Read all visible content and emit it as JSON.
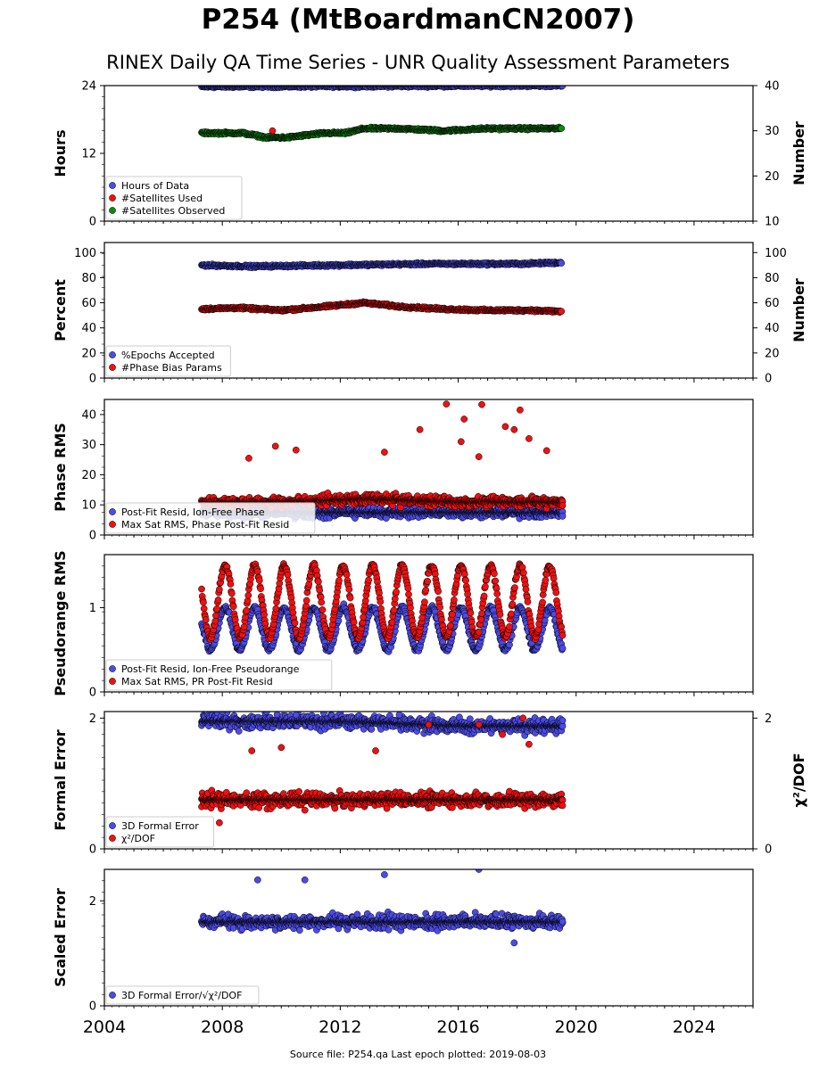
{
  "title": "P254 (MtBoardmanCN2007)",
  "subtitle": "RINEX Daily QA Time Series - UNR Quality Assessment Parameters",
  "footer": "Source file: P254.qa Last epoch plotted: 2019-08-03",
  "colors": {
    "blue": "#4b4be8",
    "red": "#ee1111",
    "green": "#118811"
  },
  "x_axis": {
    "min": 2004,
    "max": 2026,
    "ticks": [
      "2004",
      "2008",
      "2012",
      "2016",
      "2020",
      "2024"
    ]
  },
  "chart_data": [
    {
      "type": "scatter",
      "ylabel": "Hours",
      "y2label": "Number",
      "ylim": [
        0,
        24
      ],
      "y2lim": [
        10,
        40
      ],
      "yticks": [
        "0",
        "12",
        "24"
      ],
      "y2ticks": [
        "10",
        "20",
        "30",
        "40"
      ],
      "legend": "bottom-left",
      "series": [
        {
          "name": "Hours of Data",
          "axis": "left",
          "color": "blue",
          "pattern": "band",
          "x": [
            2007.3,
            2019.55
          ],
          "y": [
            23.8,
            24.0
          ]
        },
        {
          "name": "#Satellites Used",
          "axis": "right",
          "color": "red",
          "pattern": "points",
          "x": [
            2009.7,
            2011.8,
            2012.9,
            2015.0
          ],
          "y": [
            30.0,
            29.5,
            30.5,
            30.0
          ]
        },
        {
          "name": "#Satellites Observed",
          "axis": "right",
          "color": "green",
          "pattern": "band",
          "x": [
            2007.3,
            2008.0,
            2008.7,
            2009.5,
            2010.2,
            2010.8,
            2011.5,
            2012.2,
            2012.8,
            2014.0,
            2015.5,
            2017.0,
            2018.5,
            2019.5
          ],
          "y": [
            29.5,
            29.5,
            29.5,
            28.5,
            28.5,
            29.0,
            29.5,
            29.5,
            30.5,
            30.5,
            30.0,
            30.5,
            30.5,
            30.5
          ]
        }
      ]
    },
    {
      "type": "scatter",
      "ylabel": "Percent",
      "y2label": "Number",
      "ylim": [
        0,
        108
      ],
      "y2lim": [
        0,
        108
      ],
      "yticks": [
        "0",
        "20",
        "40",
        "60",
        "80",
        "100"
      ],
      "y2ticks": [
        "0",
        "20",
        "40",
        "60",
        "80",
        "100"
      ],
      "legend": "bottom-left",
      "series": [
        {
          "name": "%Epochs Accepted",
          "axis": "left",
          "color": "blue",
          "pattern": "band",
          "x": [
            2007.3,
            2009.0,
            2012.0,
            2015.0,
            2018.0,
            2019.5
          ],
          "y": [
            90,
            89,
            90,
            91,
            91,
            92
          ]
        },
        {
          "name": "#Phase Bias Params",
          "axis": "right",
          "color": "red",
          "pattern": "band",
          "x": [
            2007.3,
            2008.5,
            2010.0,
            2011.5,
            2012.8,
            2014.0,
            2015.5,
            2017.0,
            2018.5,
            2019.5
          ],
          "y": [
            55,
            56,
            54,
            57,
            60,
            57,
            55,
            54,
            54,
            53
          ]
        }
      ]
    },
    {
      "type": "scatter",
      "ylabel": "Phase RMS",
      "ylim": [
        0,
        45
      ],
      "yticks": [
        "0",
        "10",
        "20",
        "30",
        "40"
      ],
      "legend": "bottom-left",
      "series": [
        {
          "name": "Post-Fit Resid, Ion-Free Phase",
          "axis": "left",
          "color": "blue",
          "pattern": "band",
          "x": [
            2007.3,
            2019.55
          ],
          "y": [
            7.5,
            7.5
          ]
        },
        {
          "name": "Max Sat RMS, Phase Post-Fit Resid",
          "axis": "left",
          "color": "red",
          "pattern": "band",
          "x": [
            2007.3,
            2010.0,
            2013.0,
            2016.0,
            2019.55
          ],
          "y": [
            11,
            11,
            12,
            11,
            11
          ],
          "outliers": [
            [
              2008.9,
              25.5
            ],
            [
              2009.8,
              29.5
            ],
            [
              2010.5,
              28.2
            ],
            [
              2013.5,
              27.5
            ],
            [
              2014.7,
              35.0
            ],
            [
              2015.6,
              43.5
            ],
            [
              2016.1,
              31.0
            ],
            [
              2016.2,
              38.5
            ],
            [
              2016.7,
              26.0
            ],
            [
              2016.8,
              43.3
            ],
            [
              2017.6,
              36.0
            ],
            [
              2017.9,
              35.0
            ],
            [
              2018.1,
              41.5
            ],
            [
              2018.4,
              32.0
            ],
            [
              2019.0,
              28.0
            ]
          ]
        }
      ]
    },
    {
      "type": "scatter",
      "ylabel": "Pseudorange RMS",
      "ylim": [
        0,
        1.63
      ],
      "yticks": [
        "0",
        "1"
      ],
      "legend": "bottom-left",
      "series": [
        {
          "name": "Post-Fit Resid, Ion-Free Pseudorange",
          "axis": "left",
          "color": "blue",
          "pattern": "seasonal",
          "x": [
            2007.3,
            2019.55
          ],
          "y": [
            0.5,
            1.0
          ]
        },
        {
          "name": "Max Sat RMS, PR Post-Fit Resid",
          "axis": "left",
          "color": "red",
          "pattern": "seasonal",
          "x": [
            2007.3,
            2019.55
          ],
          "y": [
            0.65,
            1.5
          ]
        }
      ]
    },
    {
      "type": "scatter",
      "ylabel": "Formal Error",
      "y2label": "χ²/DOF",
      "ylim": [
        0,
        2.1
      ],
      "y2lim": [
        0,
        2.1
      ],
      "yticks": [
        "0",
        "2"
      ],
      "y2ticks": [
        "0",
        "2"
      ],
      "legend": "bottom-left",
      "series": [
        {
          "name": "3D Formal Error",
          "axis": "left",
          "color": "blue",
          "pattern": "band",
          "x": [
            2007.3,
            2012.0,
            2014.0,
            2016.0,
            2019.55
          ],
          "y": [
            1.95,
            1.95,
            1.92,
            1.88,
            1.88
          ],
          "outliers": [
            [
              2008.0,
              2.1
            ],
            [
              2009.5,
              2.1
            ],
            [
              2010.5,
              2.05
            ],
            [
              2014.0,
              2.05
            ]
          ]
        },
        {
          "name": "χ²/DOF",
          "axis": "right",
          "color": "red",
          "pattern": "band",
          "x": [
            2007.3,
            2019.55
          ],
          "y": [
            0.75,
            0.75
          ],
          "outliers": [
            [
              2007.9,
              0.4
            ],
            [
              2009.0,
              1.5
            ],
            [
              2010.0,
              1.55
            ],
            [
              2013.2,
              1.5
            ],
            [
              2015.0,
              1.9
            ],
            [
              2016.7,
              1.9
            ],
            [
              2017.5,
              1.75
            ],
            [
              2018.2,
              2.0
            ],
            [
              2018.4,
              1.6
            ]
          ]
        }
      ]
    },
    {
      "type": "scatter",
      "ylabel": "Scaled Error",
      "ylim": [
        0,
        2.6
      ],
      "yticks": [
        "0",
        "2"
      ],
      "legend": "bottom-left",
      "series": [
        {
          "name": "3D Formal Error/√χ²/DOF",
          "axis": "left",
          "color": "blue",
          "pattern": "band",
          "x": [
            2007.3,
            2019.55
          ],
          "y": [
            1.6,
            1.6
          ],
          "outliers": [
            [
              2009.2,
              2.4
            ],
            [
              2010.8,
              2.4
            ],
            [
              2013.5,
              2.5
            ],
            [
              2015.7,
              2.7
            ],
            [
              2016.7,
              2.6
            ],
            [
              2018.2,
              2.7
            ],
            [
              2017.9,
              1.2
            ]
          ]
        }
      ]
    }
  ],
  "legend_labels": [
    [
      "Hours of Data",
      "#Satellites Used",
      "#Satellites Observed"
    ],
    [
      "%Epochs Accepted",
      "#Phase Bias Params"
    ],
    [
      "Post-Fit Resid, Ion-Free Phase",
      "Max Sat RMS, Phase Post-Fit Resid"
    ],
    [
      "Post-Fit Resid, Ion-Free Pseudorange",
      "Max Sat RMS, PR Post-Fit Resid"
    ],
    [
      "3D Formal Error",
      "χ²/DOF"
    ],
    [
      "3D Formal Error/√χ²/DOF"
    ]
  ]
}
